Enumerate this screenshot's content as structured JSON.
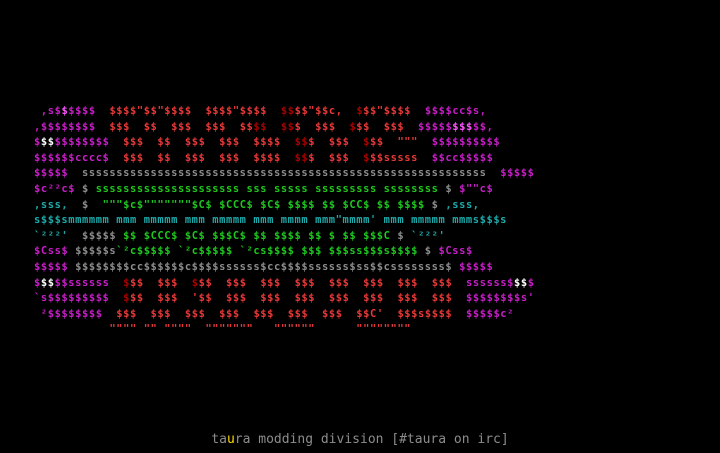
{
  "colors": {
    "background": "#000000",
    "magenta": "#c81ec8",
    "pink": "#ff55ff",
    "white": "#ffffff",
    "darkred": "#a80000",
    "red": "#e83838",
    "gray": "#8c8c8c",
    "green": "#1ec81e",
    "lightgreen": "#55ff55",
    "cyan": "#1eaaaa",
    "caption": "#8c8c8c",
    "caption_accent": "#ffd800"
  },
  "art": [
    [
      [
        "magenta",
        " ,s$"
      ],
      [
        "pink",
        "$"
      ],
      [
        "magenta",
        "$$$$"
      ],
      [
        "blank",
        "  "
      ],
      [
        "red",
        "$$$$\"$$\"$$$$"
      ],
      [
        "blank",
        "  "
      ],
      [
        "red",
        "$$$$\"$$$$"
      ],
      [
        "blank",
        "  "
      ],
      [
        "darkred",
        "$$"
      ],
      [
        "red",
        "$$\"$$c,"
      ],
      [
        "blank",
        "  "
      ],
      [
        "darkred",
        "$"
      ],
      [
        "red",
        "$$\"$$$$"
      ],
      [
        "blank",
        "  "
      ],
      [
        "magenta",
        "$$$$cc$s,"
      ]
    ],
    [
      [
        "magenta",
        ",$$$$$$$$"
      ],
      [
        "blank",
        "  "
      ],
      [
        "red",
        "$$$  $$  $$$"
      ],
      [
        "blank",
        "  "
      ],
      [
        "red",
        "$$$  $$"
      ],
      [
        "darkred",
        "$$"
      ],
      [
        "blank",
        "  "
      ],
      [
        "darkred",
        "$$"
      ],
      [
        "red",
        "$  $$$"
      ],
      [
        "blank",
        "  "
      ],
      [
        "darkred",
        "$"
      ],
      [
        "red",
        "$$  $$$"
      ],
      [
        "blank",
        "  "
      ],
      [
        "magenta",
        "$$$$$"
      ],
      [
        "pink",
        "$$$"
      ],
      [
        "magenta",
        "$$,"
      ]
    ],
    [
      [
        "magenta",
        "$"
      ],
      [
        "white",
        "$$"
      ],
      [
        "magenta",
        "$$$$$$$$"
      ],
      [
        "blank",
        "  "
      ],
      [
        "red",
        "$$$  $$  $$$"
      ],
      [
        "blank",
        "  "
      ],
      [
        "red",
        "$$$  $$$$"
      ],
      [
        "blank",
        "  "
      ],
      [
        "darkred",
        "$$"
      ],
      [
        "red",
        "$  $$$"
      ],
      [
        "blank",
        "  "
      ],
      [
        "darkred",
        "$"
      ],
      [
        "red",
        "$$  \"\"\""
      ],
      [
        "blank",
        "  "
      ],
      [
        "magenta",
        "$$$$$$$$$$"
      ]
    ],
    [
      [
        "magenta",
        "$$$$$$cccc$"
      ],
      [
        "blank",
        "  "
      ],
      [
        "red",
        "$$$  $$  $$$"
      ],
      [
        "blank",
        "  "
      ],
      [
        "red",
        "$$$  $$$$"
      ],
      [
        "blank",
        "  "
      ],
      [
        "darkred",
        "$$"
      ],
      [
        "red",
        "$  $$$"
      ],
      [
        "blank",
        "  "
      ],
      [
        "darkred",
        "$"
      ],
      [
        "red",
        "$$sssss"
      ],
      [
        "blank",
        "  "
      ],
      [
        "magenta",
        "$$cc$$$$$"
      ]
    ],
    [
      [
        "magenta",
        "$$$$$"
      ],
      [
        "blank",
        "  "
      ],
      [
        "gray",
        "sssssssssssssssssssssssssssssssssssssssssssssssssssssssssss"
      ],
      [
        "blank",
        "  "
      ],
      [
        "magenta",
        "$$$$$"
      ]
    ],
    [
      [
        "magenta",
        "$c²²c$"
      ],
      [
        "blank",
        " "
      ],
      [
        "gray",
        "$"
      ],
      [
        "blank",
        " "
      ],
      [
        "green",
        "sssssssssssssssssssss sss sssss sssssssss ssssssss"
      ],
      [
        "blank",
        " "
      ],
      [
        "gray",
        "$"
      ],
      [
        "blank",
        " "
      ],
      [
        "magenta",
        "$\"\"c$"
      ]
    ],
    [
      [
        "cyan",
        ",sss,"
      ],
      [
        "blank",
        "  "
      ],
      [
        "gray",
        "$"
      ],
      [
        "blank",
        "  "
      ],
      [
        "green",
        "\"\"\"$c$\"\"\"\"\"\"\"$C$ $CCC$ $C$ $$$$ $$ $CC$ $$ $$$$"
      ],
      [
        "blank",
        " "
      ],
      [
        "gray",
        "$"
      ],
      [
        "blank",
        " "
      ],
      [
        "cyan",
        ",sss,"
      ]
    ],
    [
      [
        "cyan",
        "s$$$smmmmmm mmm mmmmm mmm mmmmm mmm mmmm mmm\"mmmm' mmm mmmmm mmms$$$s"
      ]
    ],
    [
      [
        "cyan",
        "`²²²'"
      ],
      [
        "blank",
        "  "
      ],
      [
        "gray",
        "$$$$$"
      ],
      [
        "blank",
        " "
      ],
      [
        "green",
        "$$ $CCC$ $C$ $$$C$ $$ $$$$ $$ $ $$ $$$C"
      ],
      [
        "blank",
        " "
      ],
      [
        "gray",
        "$"
      ],
      [
        "blank",
        " "
      ],
      [
        "cyan",
        "`²²²'"
      ]
    ],
    [
      [
        "magenta",
        "$Css$"
      ],
      [
        "blank",
        " "
      ],
      [
        "gray",
        "$$$$$s"
      ],
      [
        "green",
        "`²c$$$$$ `²c$$$$$ `²cs$$$$ $$$ $$$ss$$$s$$$$"
      ],
      [
        "blank",
        " "
      ],
      [
        "gray",
        "$"
      ],
      [
        "blank",
        " "
      ],
      [
        "magenta",
        "$Css$"
      ]
    ],
    [
      [
        "magenta",
        "$$$$$"
      ],
      [
        "blank",
        " "
      ],
      [
        "gray",
        "$$$$$$$$cc$$$$$$c$$$$ssssss$cc$$$$ssssss$ss$$cssssssss$"
      ],
      [
        "blank",
        " "
      ],
      [
        "magenta",
        "$$$$$"
      ]
    ],
    [
      [
        "magenta",
        "$"
      ],
      [
        "white",
        "$$"
      ],
      [
        "magenta",
        "$$ssssss"
      ],
      [
        "blank",
        "  "
      ],
      [
        "darkred",
        "$"
      ],
      [
        "red",
        "$$  $$$"
      ],
      [
        "blank",
        "  "
      ],
      [
        "darkred",
        "$"
      ],
      [
        "red",
        "$$  $$$"
      ],
      [
        "blank",
        "  "
      ],
      [
        "red",
        "$$$  $$$"
      ],
      [
        "blank",
        "  "
      ],
      [
        "red",
        "$$$  $$$"
      ],
      [
        "blank",
        "  "
      ],
      [
        "red",
        "$$$  $$$"
      ],
      [
        "blank",
        "  "
      ],
      [
        "magenta",
        "ssssss$"
      ],
      [
        "white",
        "$$"
      ],
      [
        "magenta",
        "$"
      ]
    ],
    [
      [
        "magenta",
        "`s$$$$$$$$$"
      ],
      [
        "blank",
        "  "
      ],
      [
        "darkred",
        "$"
      ],
      [
        "red",
        "$$  $$$"
      ],
      [
        "blank",
        "  "
      ],
      [
        "red",
        "'$$  $$$"
      ],
      [
        "blank",
        "  "
      ],
      [
        "red",
        "$$$  $$$"
      ],
      [
        "blank",
        "  "
      ],
      [
        "red",
        "$$$  $$$"
      ],
      [
        "blank",
        "  "
      ],
      [
        "red",
        "$$$  $$$"
      ],
      [
        "blank",
        "  "
      ],
      [
        "magenta",
        "$$$$$$$$s'"
      ]
    ],
    [
      [
        "magenta",
        " ²$$$$$$$$"
      ],
      [
        "blank",
        "  "
      ],
      [
        "red",
        "$$$  $$$"
      ],
      [
        "blank",
        "  "
      ],
      [
        "red",
        "$$$  $$$"
      ],
      [
        "blank",
        "  "
      ],
      [
        "red",
        "$$$  $$$"
      ],
      [
        "blank",
        "  "
      ],
      [
        "red",
        "$$$  $$C'"
      ],
      [
        "blank",
        "  "
      ],
      [
        "red",
        "$$$s$$$$"
      ],
      [
        "blank",
        "  "
      ],
      [
        "magenta",
        "$$$$$c²"
      ]
    ],
    [
      [
        "blank",
        "           "
      ],
      [
        "red",
        "\"\"\"\" \"\" \"\"\"\"  \"\"\"\"\"\"\"   \"\"\"\"\"\"      \"\"\"\"\"\"\"\""
      ]
    ]
  ],
  "caption": {
    "prefix": "ta",
    "accent": "u",
    "suffix": "ra modding division [#taura on irc]"
  }
}
